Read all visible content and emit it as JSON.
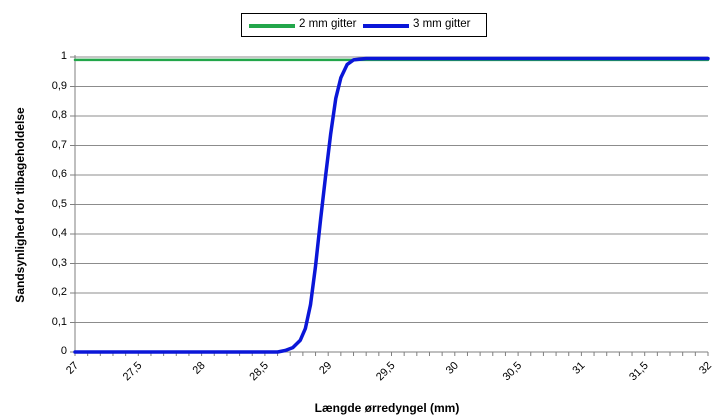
{
  "chart_data": {
    "type": "line",
    "title": "",
    "xlabel": "Længde ørredyngel (mm)",
    "ylabel": "Sandsynlighed for tilbageholdelse",
    "xlim": [
      27,
      32
    ],
    "ylim": [
      0,
      1
    ],
    "x_ticks": [
      "27",
      "27,5",
      "28",
      "28,5",
      "29",
      "29,5",
      "30",
      "30,5",
      "31",
      "31,5",
      "32"
    ],
    "y_ticks": [
      "0",
      "0,1",
      "0,2",
      "0,3",
      "0,4",
      "0,5",
      "0,6",
      "0,7",
      "0,8",
      "0,9",
      "1"
    ],
    "grid": "horizontal",
    "legend": "top-center",
    "series": [
      {
        "name": "2 mm gitter",
        "color": "#22a64a",
        "points": [
          [
            27,
            0.99
          ],
          [
            32,
            0.99
          ]
        ]
      },
      {
        "name": "3 mm gitter",
        "color": "#0a16d8",
        "points": [
          [
            27,
            0.0
          ],
          [
            28.5,
            0.0
          ],
          [
            28.6,
            0.0
          ],
          [
            28.66,
            0.005
          ],
          [
            28.72,
            0.015
          ],
          [
            28.78,
            0.04
          ],
          [
            28.82,
            0.08
          ],
          [
            28.86,
            0.16
          ],
          [
            28.9,
            0.29
          ],
          [
            28.94,
            0.45
          ],
          [
            28.98,
            0.6
          ],
          [
            29.02,
            0.74
          ],
          [
            29.06,
            0.86
          ],
          [
            29.1,
            0.93
          ],
          [
            29.15,
            0.975
          ],
          [
            29.2,
            0.99
          ],
          [
            29.3,
            0.995
          ],
          [
            32,
            0.995
          ]
        ]
      }
    ]
  }
}
